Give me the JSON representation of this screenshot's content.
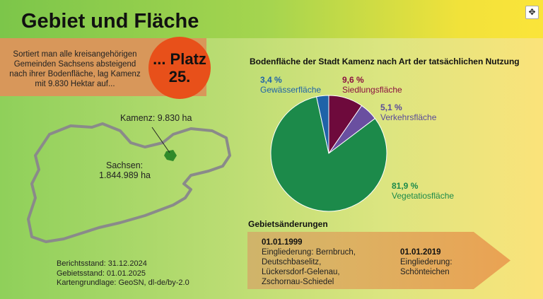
{
  "header": {
    "title": "Gebiet und Fläche",
    "expand_icon": "move-icon"
  },
  "ranking": {
    "text": "Sortiert man alle kreisangehörigen Gemeinden Sachsens absteigend nach ihrer Bodenfläche, lag Kamenz mit 9.830 Hektar auf...",
    "place_line1": "... Platz",
    "place_line2": "25."
  },
  "map": {
    "kamenz_label": "Kamenz: 9.830 ha",
    "sachsen_label_1": "Sachsen:",
    "sachsen_label_2": "1.844.989 ha"
  },
  "source": {
    "line1": "Berichtsstand: 31.12.2024",
    "line2": "Gebietsstand: 01.01.2025",
    "line3": "Kartengrundlage: GeoSN, dl-de/by-2.0"
  },
  "chart_data": {
    "type": "pie",
    "title": "Bodenfläche der Stadt Kamenz nach Art der tatsächlichen Nutzung",
    "slices": [
      {
        "name": "Siedlungsfläche",
        "value": 9.6,
        "label": "9,6 %",
        "color": "#6e0a3c"
      },
      {
        "name": "Verkehrsfläche",
        "value": 5.1,
        "label": "5,1 %",
        "color": "#6a4fa0"
      },
      {
        "name": "Vegetatiosfläche",
        "value": 81.9,
        "label": "81,9 %",
        "color": "#1c8a4a"
      },
      {
        "name": "Gewässerfläche",
        "value": 3.4,
        "label": "3,4 %",
        "color": "#1f63a8"
      }
    ]
  },
  "changes": {
    "title": "Gebietsänderungen",
    "events": [
      {
        "date": "01.01.1999",
        "lines": [
          "Eingliederung: Bernbruch,",
          "Deutschbaselitz,",
          "Lückersdorf-Gelenau,",
          "Zschornau-Schiedel"
        ]
      },
      {
        "date": "01.01.2019",
        "lines": [
          "Eingliederung:",
          "Schönteichen"
        ]
      }
    ]
  }
}
